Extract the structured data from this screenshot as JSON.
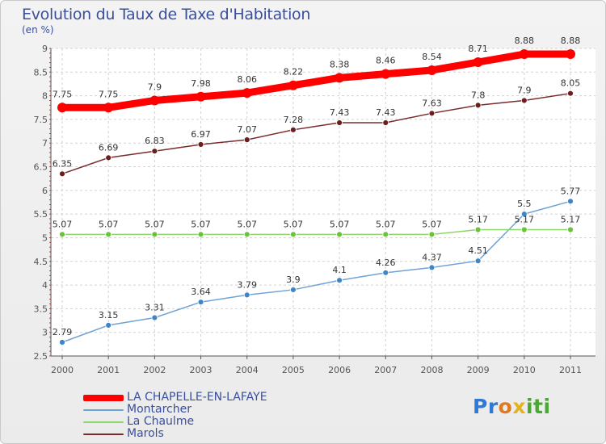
{
  "chart_data": {
    "type": "line",
    "title": "Evolution du Taux de Taxe d'Habitation",
    "subtitle": "(en %)",
    "xlabel": "",
    "ylabel": "",
    "categories": [
      "2000",
      "2001",
      "2002",
      "2003",
      "2004",
      "2005",
      "2006",
      "2007",
      "2008",
      "2009",
      "2010",
      "2011"
    ],
    "ylim": [
      2.5,
      9
    ],
    "yticks": [
      "2.5",
      "3",
      "3.5",
      "4",
      "4.5",
      "5",
      "5.5",
      "6",
      "6.5",
      "7",
      "7.5",
      "8",
      "8.5",
      "9"
    ],
    "grid": true,
    "legend_position": "bottom-left",
    "series": [
      {
        "name": "LA CHAPELLE-EN-LAFAYE",
        "color": "#ff0000",
        "values": [
          7.75,
          7.75,
          7.9,
          7.98,
          8.06,
          8.22,
          8.38,
          8.46,
          8.54,
          8.71,
          8.88,
          8.88
        ],
        "labels": [
          "7.75",
          "7.75",
          "7.9",
          "7.98",
          "8.06",
          "8.22",
          "8.38",
          "8.46",
          "8.54",
          "8.71",
          "8.88",
          "8.88"
        ]
      },
      {
        "name": "Montarcher",
        "color": "#6fa3d6",
        "values": [
          2.79,
          3.15,
          3.31,
          3.64,
          3.79,
          3.9,
          4.1,
          4.26,
          4.37,
          4.51,
          5.5,
          5.77
        ],
        "labels": [
          "2.79",
          "3.15",
          "3.31",
          "3.64",
          "3.79",
          "3.9",
          "4.1",
          "4.26",
          "4.37",
          "4.51",
          "5.5",
          "5.77"
        ]
      },
      {
        "name": "La Chaulme",
        "color": "#8fd66a",
        "values": [
          5.07,
          5.07,
          5.07,
          5.07,
          5.07,
          5.07,
          5.07,
          5.07,
          5.07,
          5.17,
          5.17,
          5.17
        ],
        "labels": [
          "5.07",
          "5.07",
          "5.07",
          "5.07",
          "5.07",
          "5.07",
          "5.07",
          "5.07",
          "5.07",
          "5.17",
          "5.17",
          "5.17"
        ]
      },
      {
        "name": "Marols",
        "color": "#7a2c2c",
        "values": [
          6.35,
          6.69,
          6.83,
          6.97,
          7.07,
          7.28,
          7.43,
          7.43,
          7.63,
          7.8,
          7.9,
          8.05
        ],
        "labels": [
          "6.35",
          "6.69",
          "6.83",
          "6.97",
          "7.07",
          "7.28",
          "7.43",
          "7.43",
          "7.63",
          "7.8",
          "7.9",
          "8.05"
        ]
      }
    ]
  },
  "brand": {
    "p1": "Pr",
    "p2": "o",
    "p3": "x",
    "p4": "iti"
  }
}
